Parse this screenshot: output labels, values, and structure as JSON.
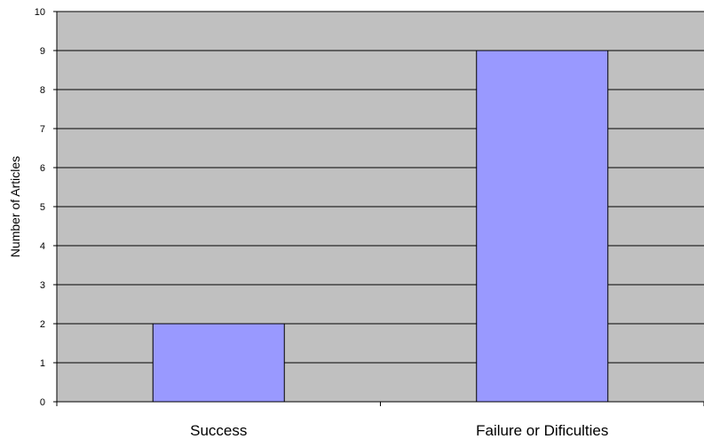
{
  "chart_data": {
    "type": "bar",
    "categories": [
      "Success",
      "Failure or Dificulties"
    ],
    "values": [
      2,
      9
    ],
    "xlabel": "",
    "ylabel": "Number of Articles",
    "ylim": [
      0,
      10
    ],
    "yticks": [
      "0",
      "1",
      "2",
      "3",
      "4",
      "5",
      "6",
      "7",
      "8",
      "9",
      "10"
    ],
    "grid": true,
    "legend": "none",
    "colors": {
      "plot_background": "#c0c0c0",
      "bar_fill": "#9999ff",
      "gridline": "#000000",
      "bar_stroke": "#000000"
    }
  }
}
